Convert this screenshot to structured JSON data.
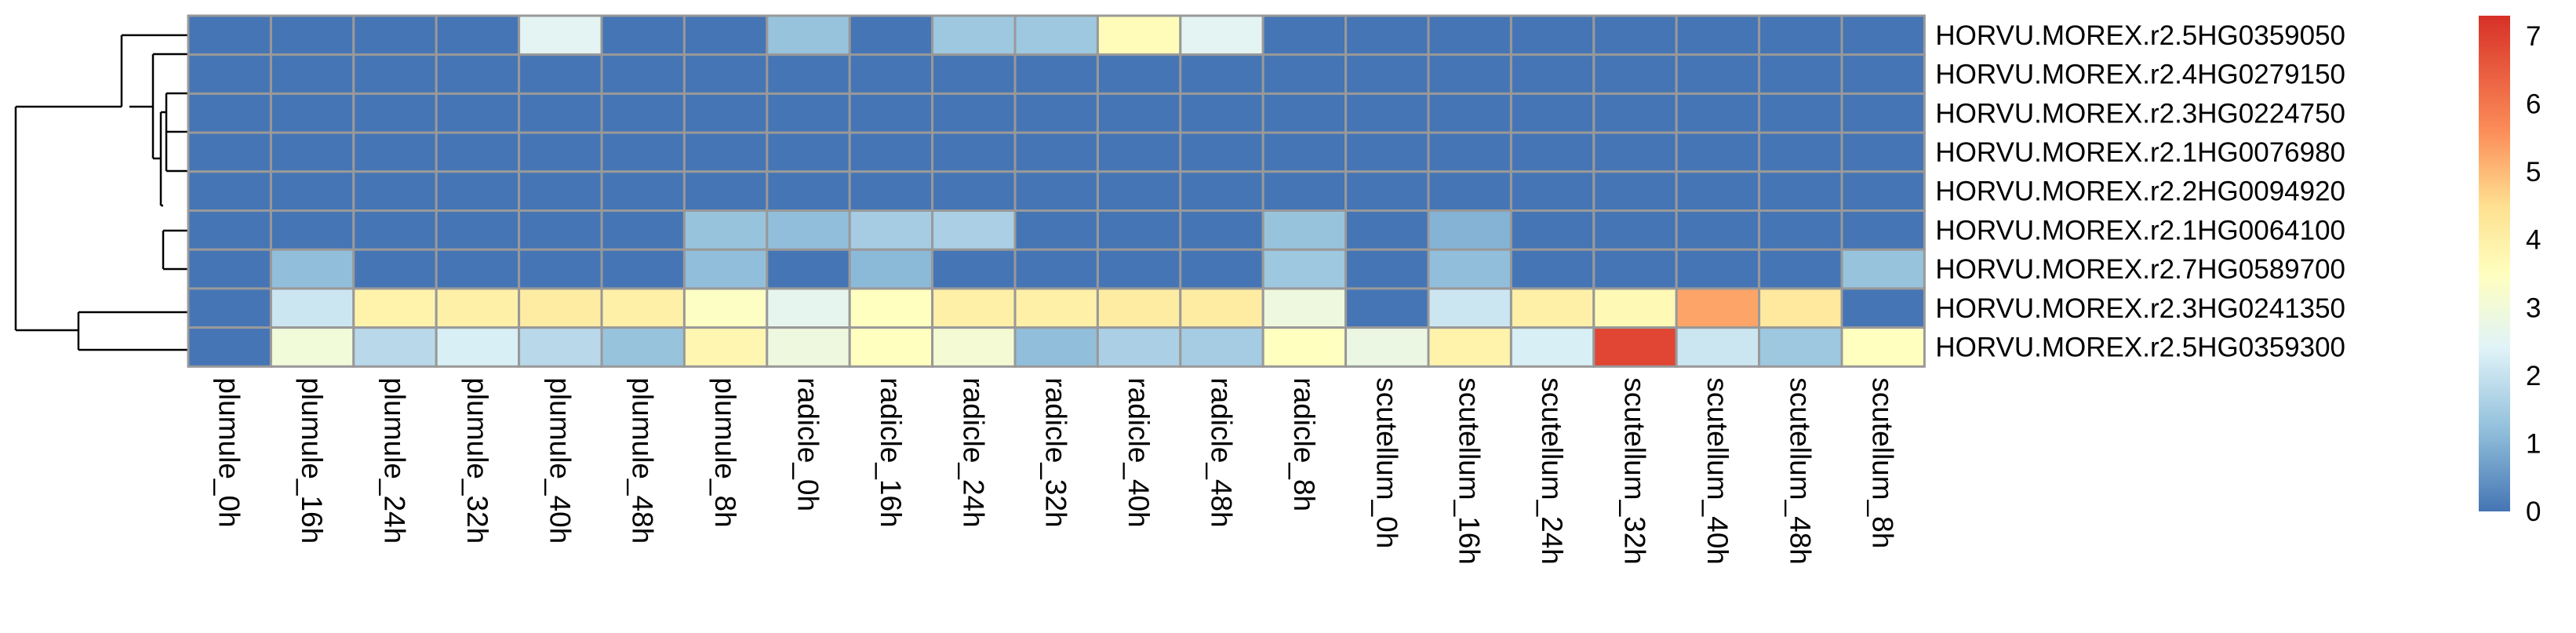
{
  "chart_data": {
    "type": "heatmap",
    "title": "",
    "columns": [
      "plumule_0h",
      "plumule_16h",
      "plumule_24h",
      "plumule_32h",
      "plumule_40h",
      "plumule_48h",
      "plumule_8h",
      "radicle_0h",
      "radicle_16h",
      "radicle_24h",
      "radicle_32h",
      "radicle_40h",
      "radicle_48h",
      "radicle_8h",
      "scutellum_0h",
      "scutellum_16h",
      "scutellum_24h",
      "scutellum_32h",
      "scutellum_40h",
      "scutellum_48h",
      "scutellum_8h"
    ],
    "rows": [
      "HORVU.MOREX.r2.5HG0359050",
      "HORVU.MOREX.r2.4HG0279150",
      "HORVU.MOREX.r2.3HG0224750",
      "HORVU.MOREX.r2.1HG0076980",
      "HORVU.MOREX.r2.2HG0094920",
      "HORVU.MOREX.r2.1HG0064100",
      "HORVU.MOREX.r2.7HG0589700",
      "HORVU.MOREX.r2.3HG0241350",
      "HORVU.MOREX.r2.5HG0359300"
    ],
    "values": [
      [
        0,
        0,
        0,
        0,
        2.5,
        0,
        0,
        1.3,
        0,
        1.4,
        1.4,
        3.6,
        2.5,
        0,
        0,
        0,
        0,
        0,
        0,
        0,
        0
      ],
      [
        0,
        0,
        0,
        0,
        0,
        0,
        0,
        0,
        0,
        0,
        0,
        0,
        0,
        0,
        0,
        0,
        0,
        0,
        0,
        0,
        0
      ],
      [
        0,
        0,
        0,
        0,
        0,
        0,
        0,
        0,
        0,
        0,
        0,
        0,
        0,
        0,
        0,
        0,
        0,
        0,
        0,
        0,
        0
      ],
      [
        0,
        0,
        0,
        0,
        0,
        0,
        0,
        0,
        0,
        0,
        0,
        0,
        0,
        0,
        0,
        0,
        0,
        0,
        0,
        0,
        0
      ],
      [
        0,
        0,
        0,
        0,
        0,
        0,
        0,
        0,
        0,
        0,
        0,
        0,
        0,
        0,
        0,
        0,
        0,
        0,
        0,
        0,
        0
      ],
      [
        0,
        0,
        0,
        0,
        0,
        0,
        1.3,
        1.2,
        1.5,
        1.6,
        0,
        0,
        0,
        1.3,
        0,
        1,
        0,
        0,
        0,
        0,
        0
      ],
      [
        0,
        1.2,
        0,
        0,
        0,
        0,
        1.2,
        0,
        1.1,
        0,
        0,
        0,
        0,
        1.4,
        0,
        1.2,
        0,
        0,
        0,
        0,
        1.3
      ],
      [
        0,
        2.1,
        3.9,
        4,
        4.1,
        4,
        3.4,
        2.6,
        3.5,
        4,
        4,
        4.1,
        4.1,
        2.9,
        0,
        2.1,
        4,
        3.7,
        5.3,
        4.2,
        0
      ],
      [
        0,
        3,
        1.8,
        2.3,
        1.8,
        1.3,
        3.8,
        2.9,
        3.5,
        3.1,
        1.2,
        1.6,
        1.5,
        3.5,
        2.8,
        3.9,
        2.3,
        6.9,
        2.1,
        1.4,
        3.5
      ]
    ],
    "color_scale": {
      "min": 0,
      "max": 7.3,
      "stops": [
        {
          "value": 0,
          "color": "#4575b4"
        },
        {
          "value": 1.2,
          "color": "#91bfdb"
        },
        {
          "value": 2.4,
          "color": "#e0f3f8"
        },
        {
          "value": 3.5,
          "color": "#ffffbf"
        },
        {
          "value": 4.5,
          "color": "#fee090"
        },
        {
          "value": 5.6,
          "color": "#fc8d59"
        },
        {
          "value": 7.3,
          "color": "#d73027"
        }
      ]
    },
    "legend_ticks": [
      "0",
      "1",
      "2",
      "3",
      "4",
      "5",
      "6",
      "7"
    ],
    "legend_placement": "right",
    "grid": true,
    "row_dendrogram": true
  }
}
